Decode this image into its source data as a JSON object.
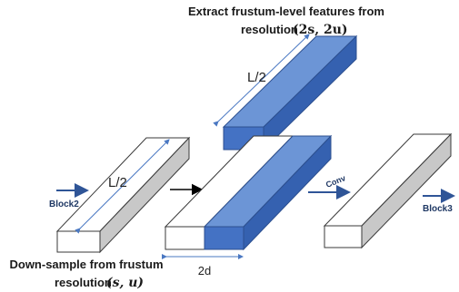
{
  "captions": {
    "top_line1": "Extract frustum-level features from",
    "top_line2": "resolution",
    "top_math": "(2s, 2u)",
    "bottom_line1": "Down-sample from frustum",
    "bottom_line2": "resolution",
    "bottom_math": "(s, u)"
  },
  "labels": {
    "half_length_left": "L/2",
    "half_length_top": "L/2",
    "width_2d": "2d",
    "block2": "Block2",
    "block3": "Block3",
    "conv": "Conv"
  },
  "colors": {
    "blue_front": "#4472c4",
    "blue_top": "#6c95d6",
    "blue_side": "#3561b0",
    "grey_side": "#c8c8c8",
    "outline": "#3a3a3a",
    "arrow_blue": "#2f5597",
    "arrow_black": "#000000",
    "measure": "#4a78c2"
  }
}
